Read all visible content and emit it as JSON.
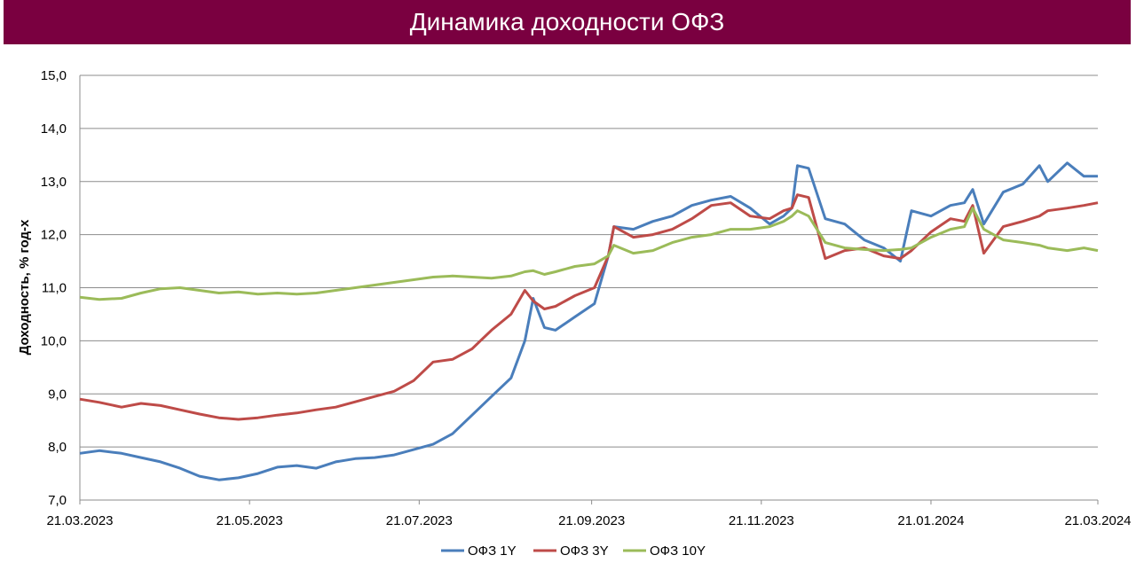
{
  "title": "Динамика доходности ОФЗ",
  "chart_data": {
    "type": "line",
    "title": "Динамика доходности ОФЗ",
    "xlabel": "",
    "ylabel": "Доходность, % год-х",
    "ylim": [
      7.0,
      15.0
    ],
    "y_ticks": [
      "7,0",
      "8,0",
      "9,0",
      "10,0",
      "11,0",
      "12,0",
      "13,0",
      "14,0",
      "15,0"
    ],
    "x_ticks": [
      "21.03.2023",
      "21.05.2023",
      "21.07.2023",
      "21.09.2023",
      "21.11.2023",
      "21.01.2024",
      "21.03.2024"
    ],
    "x_range": [
      "2023-03-21",
      "2024-03-21"
    ],
    "grid": true,
    "legend_position": "bottom",
    "series": [
      {
        "name": "ОФЗ 1Y",
        "color": "#4a7ebb",
        "points": [
          [
            "2023-03-21",
            7.88
          ],
          [
            "2023-03-28",
            7.93
          ],
          [
            "2023-04-05",
            7.88
          ],
          [
            "2023-04-12",
            7.8
          ],
          [
            "2023-04-19",
            7.72
          ],
          [
            "2023-04-26",
            7.6
          ],
          [
            "2023-05-03",
            7.45
          ],
          [
            "2023-05-10",
            7.38
          ],
          [
            "2023-05-17",
            7.42
          ],
          [
            "2023-05-24",
            7.5
          ],
          [
            "2023-05-31",
            7.62
          ],
          [
            "2023-06-07",
            7.65
          ],
          [
            "2023-06-14",
            7.6
          ],
          [
            "2023-06-21",
            7.72
          ],
          [
            "2023-06-28",
            7.78
          ],
          [
            "2023-07-05",
            7.8
          ],
          [
            "2023-07-12",
            7.85
          ],
          [
            "2023-07-19",
            7.95
          ],
          [
            "2023-07-26",
            8.05
          ],
          [
            "2023-08-02",
            8.25
          ],
          [
            "2023-08-09",
            8.6
          ],
          [
            "2023-08-16",
            8.95
          ],
          [
            "2023-08-23",
            9.3
          ],
          [
            "2023-08-28",
            10.0
          ],
          [
            "2023-08-31",
            10.8
          ],
          [
            "2023-09-04",
            10.25
          ],
          [
            "2023-09-08",
            10.2
          ],
          [
            "2023-09-15",
            10.45
          ],
          [
            "2023-09-22",
            10.7
          ],
          [
            "2023-09-27",
            11.6
          ],
          [
            "2023-09-29",
            12.15
          ],
          [
            "2023-10-06",
            12.1
          ],
          [
            "2023-10-13",
            12.25
          ],
          [
            "2023-10-20",
            12.35
          ],
          [
            "2023-10-27",
            12.55
          ],
          [
            "2023-11-03",
            12.65
          ],
          [
            "2023-11-10",
            12.72
          ],
          [
            "2023-11-17",
            12.5
          ],
          [
            "2023-11-24",
            12.2
          ],
          [
            "2023-11-29",
            12.35
          ],
          [
            "2023-12-02",
            12.5
          ],
          [
            "2023-12-04",
            13.3
          ],
          [
            "2023-12-08",
            13.25
          ],
          [
            "2023-12-14",
            12.3
          ],
          [
            "2023-12-21",
            12.2
          ],
          [
            "2023-12-28",
            11.9
          ],
          [
            "2024-01-04",
            11.75
          ],
          [
            "2024-01-10",
            11.5
          ],
          [
            "2024-01-14",
            12.45
          ],
          [
            "2024-01-21",
            12.35
          ],
          [
            "2024-01-28",
            12.55
          ],
          [
            "2024-02-02",
            12.6
          ],
          [
            "2024-02-05",
            12.85
          ],
          [
            "2024-02-09",
            12.2
          ],
          [
            "2024-02-16",
            12.8
          ],
          [
            "2024-02-23",
            12.95
          ],
          [
            "2024-02-29",
            13.3
          ],
          [
            "2024-03-03",
            13.0
          ],
          [
            "2024-03-10",
            13.35
          ],
          [
            "2024-03-16",
            13.1
          ],
          [
            "2024-03-21",
            13.1
          ]
        ]
      },
      {
        "name": "ОФЗ 3Y",
        "color": "#be4b48",
        "points": [
          [
            "2023-03-21",
            8.9
          ],
          [
            "2023-03-28",
            8.84
          ],
          [
            "2023-04-05",
            8.75
          ],
          [
            "2023-04-12",
            8.82
          ],
          [
            "2023-04-19",
            8.78
          ],
          [
            "2023-04-26",
            8.7
          ],
          [
            "2023-05-03",
            8.62
          ],
          [
            "2023-05-10",
            8.55
          ],
          [
            "2023-05-17",
            8.52
          ],
          [
            "2023-05-24",
            8.55
          ],
          [
            "2023-05-31",
            8.6
          ],
          [
            "2023-06-07",
            8.64
          ],
          [
            "2023-06-14",
            8.7
          ],
          [
            "2023-06-21",
            8.75
          ],
          [
            "2023-06-28",
            8.85
          ],
          [
            "2023-07-05",
            8.95
          ],
          [
            "2023-07-12",
            9.05
          ],
          [
            "2023-07-19",
            9.25
          ],
          [
            "2023-07-26",
            9.6
          ],
          [
            "2023-08-02",
            9.65
          ],
          [
            "2023-08-09",
            9.85
          ],
          [
            "2023-08-16",
            10.2
          ],
          [
            "2023-08-23",
            10.5
          ],
          [
            "2023-08-28",
            10.95
          ],
          [
            "2023-08-31",
            10.75
          ],
          [
            "2023-09-04",
            10.6
          ],
          [
            "2023-09-08",
            10.65
          ],
          [
            "2023-09-15",
            10.85
          ],
          [
            "2023-09-22",
            11.0
          ],
          [
            "2023-09-27",
            11.6
          ],
          [
            "2023-09-29",
            12.15
          ],
          [
            "2023-10-06",
            11.95
          ],
          [
            "2023-10-13",
            12.0
          ],
          [
            "2023-10-20",
            12.1
          ],
          [
            "2023-10-27",
            12.3
          ],
          [
            "2023-11-03",
            12.55
          ],
          [
            "2023-11-10",
            12.6
          ],
          [
            "2023-11-17",
            12.35
          ],
          [
            "2023-11-24",
            12.3
          ],
          [
            "2023-11-29",
            12.45
          ],
          [
            "2023-12-02",
            12.5
          ],
          [
            "2023-12-04",
            12.75
          ],
          [
            "2023-12-08",
            12.7
          ],
          [
            "2023-12-14",
            11.55
          ],
          [
            "2023-12-21",
            11.7
          ],
          [
            "2023-12-28",
            11.75
          ],
          [
            "2024-01-04",
            11.6
          ],
          [
            "2024-01-10",
            11.55
          ],
          [
            "2024-01-14",
            11.7
          ],
          [
            "2024-01-21",
            12.05
          ],
          [
            "2024-01-28",
            12.3
          ],
          [
            "2024-02-02",
            12.25
          ],
          [
            "2024-02-05",
            12.55
          ],
          [
            "2024-02-09",
            11.65
          ],
          [
            "2024-02-16",
            12.15
          ],
          [
            "2024-02-23",
            12.25
          ],
          [
            "2024-02-29",
            12.35
          ],
          [
            "2024-03-03",
            12.45
          ],
          [
            "2024-03-10",
            12.5
          ],
          [
            "2024-03-16",
            12.55
          ],
          [
            "2024-03-21",
            12.6
          ]
        ]
      },
      {
        "name": "ОФЗ 10Y",
        "color": "#9bbb59",
        "points": [
          [
            "2023-03-21",
            10.82
          ],
          [
            "2023-03-28",
            10.78
          ],
          [
            "2023-04-05",
            10.8
          ],
          [
            "2023-04-12",
            10.9
          ],
          [
            "2023-04-19",
            10.98
          ],
          [
            "2023-04-26",
            11.0
          ],
          [
            "2023-05-03",
            10.95
          ],
          [
            "2023-05-10",
            10.9
          ],
          [
            "2023-05-17",
            10.92
          ],
          [
            "2023-05-24",
            10.88
          ],
          [
            "2023-05-31",
            10.9
          ],
          [
            "2023-06-07",
            10.88
          ],
          [
            "2023-06-14",
            10.9
          ],
          [
            "2023-06-21",
            10.95
          ],
          [
            "2023-06-28",
            11.0
          ],
          [
            "2023-07-05",
            11.05
          ],
          [
            "2023-07-12",
            11.1
          ],
          [
            "2023-07-19",
            11.15
          ],
          [
            "2023-07-26",
            11.2
          ],
          [
            "2023-08-02",
            11.22
          ],
          [
            "2023-08-09",
            11.2
          ],
          [
            "2023-08-16",
            11.18
          ],
          [
            "2023-08-23",
            11.22
          ],
          [
            "2023-08-28",
            11.3
          ],
          [
            "2023-08-31",
            11.32
          ],
          [
            "2023-09-04",
            11.25
          ],
          [
            "2023-09-08",
            11.3
          ],
          [
            "2023-09-15",
            11.4
          ],
          [
            "2023-09-22",
            11.45
          ],
          [
            "2023-09-27",
            11.6
          ],
          [
            "2023-09-29",
            11.8
          ],
          [
            "2023-10-06",
            11.65
          ],
          [
            "2023-10-13",
            11.7
          ],
          [
            "2023-10-20",
            11.85
          ],
          [
            "2023-10-27",
            11.95
          ],
          [
            "2023-11-03",
            12.0
          ],
          [
            "2023-11-10",
            12.1
          ],
          [
            "2023-11-17",
            12.1
          ],
          [
            "2023-11-24",
            12.15
          ],
          [
            "2023-11-29",
            12.25
          ],
          [
            "2023-12-02",
            12.35
          ],
          [
            "2023-12-04",
            12.45
          ],
          [
            "2023-12-08",
            12.35
          ],
          [
            "2023-12-14",
            11.85
          ],
          [
            "2023-12-21",
            11.75
          ],
          [
            "2023-12-28",
            11.72
          ],
          [
            "2024-01-04",
            11.7
          ],
          [
            "2024-01-10",
            11.72
          ],
          [
            "2024-01-14",
            11.75
          ],
          [
            "2024-01-21",
            11.95
          ],
          [
            "2024-01-28",
            12.1
          ],
          [
            "2024-02-02",
            12.15
          ],
          [
            "2024-02-05",
            12.5
          ],
          [
            "2024-02-09",
            12.1
          ],
          [
            "2024-02-16",
            11.9
          ],
          [
            "2024-02-23",
            11.85
          ],
          [
            "2024-02-29",
            11.8
          ],
          [
            "2024-03-03",
            11.75
          ],
          [
            "2024-03-10",
            11.7
          ],
          [
            "2024-03-16",
            11.75
          ],
          [
            "2024-03-21",
            11.7
          ]
        ]
      }
    ]
  }
}
